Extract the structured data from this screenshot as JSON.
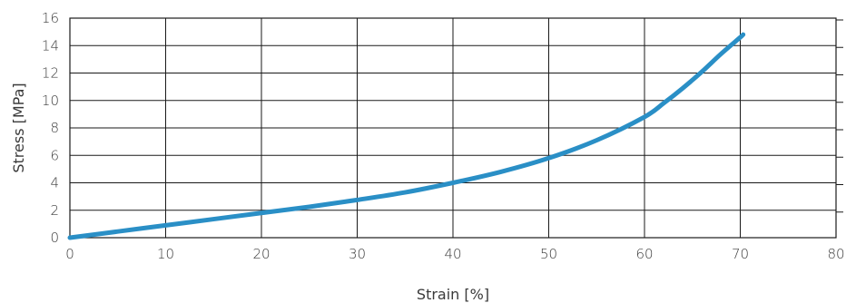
{
  "chart_data": {
    "type": "line",
    "title": "",
    "xlabel": "Strain [%]",
    "ylabel": "Stress  [MPa]",
    "xlim": [
      0,
      80
    ],
    "ylim": [
      0,
      16
    ],
    "x_ticks": [
      "0",
      "10",
      "20",
      "30",
      "40",
      "50",
      "60",
      "70",
      "80"
    ],
    "y_ticks": [
      "0",
      "2",
      "4",
      "6",
      "8",
      "10",
      "12",
      "14",
      "16"
    ],
    "grid": true,
    "legend": "none",
    "series": [
      {
        "color": "#2a8fc6",
        "x": [
          0,
          5,
          10,
          15,
          20,
          25,
          30,
          35,
          40,
          45,
          50,
          55,
          60,
          62,
          64,
          66,
          68,
          70,
          70.3
        ],
        "y": [
          0,
          0.45,
          0.9,
          1.35,
          1.8,
          2.25,
          2.75,
          3.3,
          4.0,
          4.8,
          5.8,
          7.1,
          8.8,
          9.8,
          10.9,
          12.1,
          13.4,
          14.6,
          14.8
        ]
      }
    ]
  }
}
